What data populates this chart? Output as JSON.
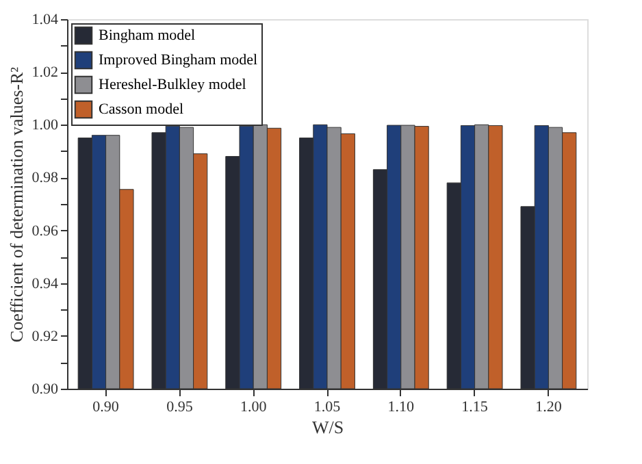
{
  "chart_data": {
    "type": "bar",
    "xlabel": "W/S",
    "ylabel": "Coefficient of determination values-R²",
    "categories": [
      "0.90",
      "0.95",
      "1.00",
      "1.05",
      "1.10",
      "1.15",
      "1.20"
    ],
    "series": [
      {
        "name": "Bingham model",
        "color": "#262a36",
        "values": [
          0.995,
          0.997,
          0.988,
          0.995,
          0.983,
          0.978,
          0.969
        ]
      },
      {
        "name": "Improved Bingham model",
        "color": "#1f3f7a",
        "values": [
          0.996,
          0.9995,
          0.9995,
          1.0,
          0.9998,
          0.9997,
          0.9997
        ]
      },
      {
        "name": "Hereshel-Bulkley model",
        "color": "#8e8e92",
        "values": [
          0.996,
          0.999,
          1.0,
          0.999,
          0.9998,
          1.0,
          0.999
        ]
      },
      {
        "name": "Casson model",
        "color": "#c0602a",
        "values": [
          0.9755,
          0.989,
          0.9987,
          0.9966,
          0.9994,
          0.9997,
          0.997
        ]
      }
    ],
    "ylim": [
      0.9,
      1.04
    ],
    "yticks": [
      {
        "value": 0.9,
        "label": "0.90"
      },
      {
        "value": 0.91,
        "label": null
      },
      {
        "value": 0.92,
        "label": "0.92"
      },
      {
        "value": 0.93,
        "label": null
      },
      {
        "value": 0.94,
        "label": "0.94"
      },
      {
        "value": 0.95,
        "label": null
      },
      {
        "value": 0.96,
        "label": "0.96"
      },
      {
        "value": 0.97,
        "label": null
      },
      {
        "value": 0.98,
        "label": "0.98"
      },
      {
        "value": 0.99,
        "label": null
      },
      {
        "value": 1.0,
        "label": "1.00"
      },
      {
        "value": 1.01,
        "label": null
      },
      {
        "value": 1.02,
        "label": "1.02"
      },
      {
        "value": 1.03,
        "label": null
      },
      {
        "value": 1.04,
        "label": "1.04"
      }
    ],
    "grid": false,
    "legend": "top left"
  }
}
